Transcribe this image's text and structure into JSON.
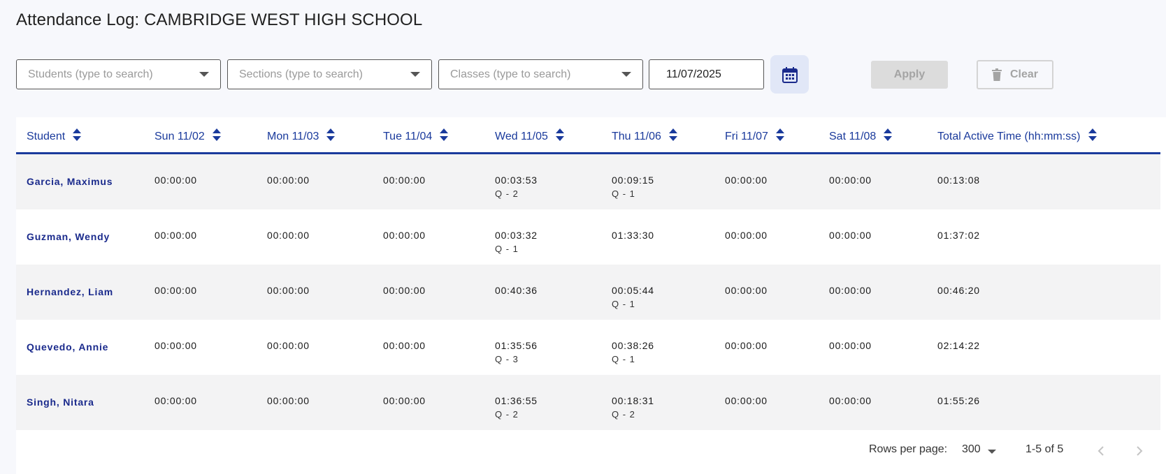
{
  "title": "Attendance Log: CAMBRIDGE WEST HIGH SCHOOL",
  "filters": {
    "students_placeholder": "Students (type to search)",
    "sections_placeholder": "Sections (type to search)",
    "classes_placeholder": "Classes (type to search)",
    "date": "11/07/2025",
    "calendar_icon": "calendar-icon",
    "apply_label": "Apply",
    "clear_label": "Clear",
    "clear_icon": "trash-icon"
  },
  "table": {
    "columns": [
      "Student",
      "Sun 11/02",
      "Mon 11/03",
      "Tue 11/04",
      "Wed 11/05",
      "Thu 11/06",
      "Fri 11/07",
      "Sat 11/08",
      "Total Active Time (hh:mm:ss)"
    ],
    "rows": [
      {
        "student": "Garcia, Maximus",
        "days": [
          {
            "time": "00:00:00",
            "q": ""
          },
          {
            "time": "00:00:00",
            "q": ""
          },
          {
            "time": "00:00:00",
            "q": ""
          },
          {
            "time": "00:03:53",
            "q": "Q - 2"
          },
          {
            "time": "00:09:15",
            "q": "Q - 1"
          },
          {
            "time": "00:00:00",
            "q": ""
          },
          {
            "time": "00:00:00",
            "q": ""
          }
        ],
        "total": "00:13:08"
      },
      {
        "student": "Guzman, Wendy",
        "days": [
          {
            "time": "00:00:00",
            "q": ""
          },
          {
            "time": "00:00:00",
            "q": ""
          },
          {
            "time": "00:00:00",
            "q": ""
          },
          {
            "time": "00:03:32",
            "q": "Q - 1"
          },
          {
            "time": "01:33:30",
            "q": ""
          },
          {
            "time": "00:00:00",
            "q": ""
          },
          {
            "time": "00:00:00",
            "q": ""
          }
        ],
        "total": "01:37:02"
      },
      {
        "student": "Hernandez, Liam",
        "days": [
          {
            "time": "00:00:00",
            "q": ""
          },
          {
            "time": "00:00:00",
            "q": ""
          },
          {
            "time": "00:00:00",
            "q": ""
          },
          {
            "time": "00:40:36",
            "q": ""
          },
          {
            "time": "00:05:44",
            "q": "Q - 1"
          },
          {
            "time": "00:00:00",
            "q": ""
          },
          {
            "time": "00:00:00",
            "q": ""
          }
        ],
        "total": "00:46:20"
      },
      {
        "student": "Quevedo, Annie",
        "days": [
          {
            "time": "00:00:00",
            "q": ""
          },
          {
            "time": "00:00:00",
            "q": ""
          },
          {
            "time": "00:00:00",
            "q": ""
          },
          {
            "time": "01:35:56",
            "q": "Q - 3"
          },
          {
            "time": "00:38:26",
            "q": "Q - 1"
          },
          {
            "time": "00:00:00",
            "q": ""
          },
          {
            "time": "00:00:00",
            "q": ""
          }
        ],
        "total": "02:14:22"
      },
      {
        "student": "Singh, Nitara",
        "days": [
          {
            "time": "00:00:00",
            "q": ""
          },
          {
            "time": "00:00:00",
            "q": ""
          },
          {
            "time": "00:00:00",
            "q": ""
          },
          {
            "time": "01:36:55",
            "q": "Q - 2"
          },
          {
            "time": "00:18:31",
            "q": "Q - 2"
          },
          {
            "time": "00:00:00",
            "q": ""
          },
          {
            "time": "00:00:00",
            "q": ""
          }
        ],
        "total": "01:55:26"
      }
    ]
  },
  "pagination": {
    "rows_per_page_label": "Rows per page:",
    "rows_per_page_value": "300",
    "range": "1-5 of 5"
  },
  "colors": {
    "accent": "#1a3a9c",
    "name": "#1a2a8c",
    "row_alt": "#f3f3f4"
  }
}
